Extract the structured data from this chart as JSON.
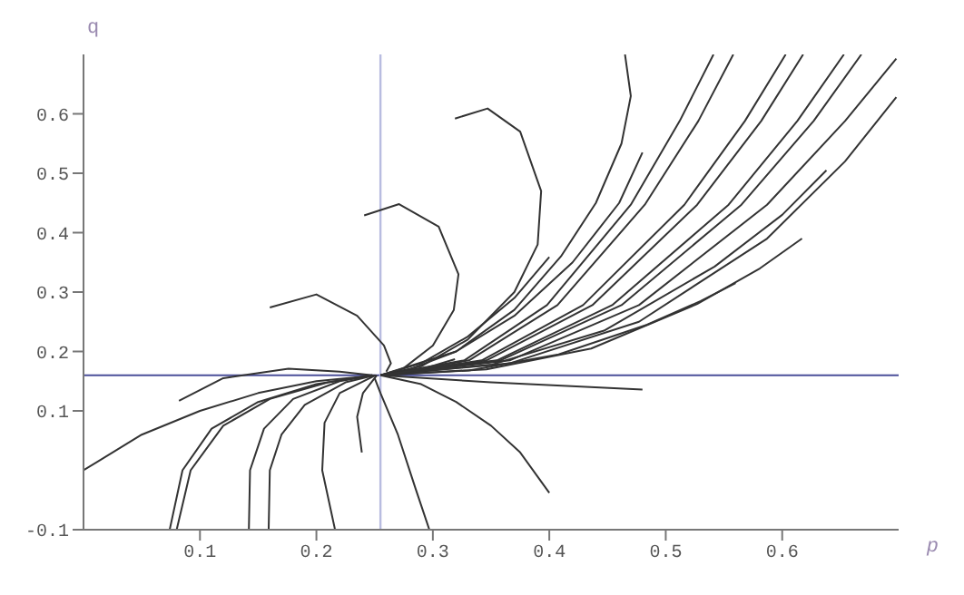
{
  "chart_data": {
    "type": "line",
    "xlabel": "p",
    "ylabel": "q",
    "xlim": [
      0,
      0.7
    ],
    "ylim": [
      -0.1,
      0.7
    ],
    "xticks": [
      0.1,
      0.2,
      0.3,
      0.4,
      0.5,
      0.6
    ],
    "yticks": [
      -0.1,
      0.1,
      0.2,
      0.3,
      0.4,
      0.5,
      0.6
    ],
    "grid": false,
    "marker": "none",
    "line_style": "solid",
    "ref_lines": [
      {
        "axis": "y",
        "value": 0.16,
        "color": "#4b4f9a"
      },
      {
        "axis": "x",
        "value": 0.255,
        "color": "#b8bce0"
      }
    ],
    "series": [
      {
        "color": "#333333",
        "x": [
          0,
          0.05,
          0.1,
          0.15,
          0.2,
          0.248
        ],
        "values": [
          0,
          0.06,
          0.1,
          0.13,
          0.15,
          0.159
        ]
      },
      {
        "color": "#333333",
        "x": [
          0.082,
          0.12,
          0.176,
          0.22,
          0.248
        ],
        "values": [
          0.117,
          0.155,
          0.171,
          0.166,
          0.16
        ]
      },
      {
        "color": "#333333",
        "x": [
          0.16,
          0.2,
          0.235,
          0.258,
          0.264,
          0.26
        ],
        "values": [
          0.274,
          0.296,
          0.26,
          0.21,
          0.18,
          0.166
        ]
      },
      {
        "color": "#333333",
        "x": [
          0.241,
          0.271,
          0.305,
          0.322,
          0.318,
          0.3,
          0.275,
          0.265
        ],
        "values": [
          0.429,
          0.448,
          0.41,
          0.33,
          0.27,
          0.21,
          0.172,
          0.165
        ]
      },
      {
        "color": "#333333",
        "x": [
          0.319,
          0.347,
          0.375,
          0.393,
          0.39,
          0.37,
          0.33,
          0.29,
          0.255
        ],
        "values": [
          0.592,
          0.609,
          0.57,
          0.47,
          0.38,
          0.3,
          0.22,
          0.175,
          0.16
        ]
      },
      {
        "color": "#333333",
        "x": [
          0.465,
          0.47,
          0.462,
          0.44,
          0.41,
          0.37,
          0.32,
          0.28,
          0.255
        ],
        "values": [
          0.7,
          0.63,
          0.55,
          0.45,
          0.36,
          0.27,
          0.2,
          0.17,
          0.16
        ]
      },
      {
        "color": "#333333",
        "x": [
          0.48,
          0.46,
          0.42,
          0.37,
          0.32,
          0.255
        ],
        "values": [
          0.535,
          0.45,
          0.35,
          0.26,
          0.2,
          0.16
        ]
      },
      {
        "color": "#333333",
        "x": [
          0.4,
          0.37,
          0.33,
          0.29,
          0.255
        ],
        "values": [
          0.359,
          0.29,
          0.225,
          0.18,
          0.16
        ]
      },
      {
        "color": "#333333",
        "x": [
          0.255,
          0.327,
          0.398,
          0.47,
          0.512,
          0.541
        ],
        "values": [
          0.16,
          0.185,
          0.278,
          0.447,
          0.588,
          0.7
        ]
      },
      {
        "color": "#333333",
        "x": [
          0.255,
          0.331,
          0.407,
          0.482,
          0.528,
          0.558
        ],
        "values": [
          0.16,
          0.185,
          0.278,
          0.447,
          0.588,
          0.7
        ]
      },
      {
        "color": "#333333",
        "x": [
          0.255,
          0.342,
          0.429,
          0.516,
          0.568,
          0.603
        ],
        "values": [
          0.16,
          0.185,
          0.278,
          0.447,
          0.588,
          0.7
        ]
      },
      {
        "color": "#333333",
        "x": [
          0.255,
          0.346,
          0.437,
          0.527,
          0.582,
          0.618
        ],
        "values": [
          0.16,
          0.185,
          0.278,
          0.447,
          0.588,
          0.7
        ]
      },
      {
        "color": "#333333",
        "x": [
          0.255,
          0.355,
          0.454,
          0.554,
          0.613,
          0.653
        ],
        "values": [
          0.16,
          0.185,
          0.278,
          0.447,
          0.588,
          0.7
        ]
      },
      {
        "color": "#333333",
        "x": [
          0.255,
          0.358,
          0.462,
          0.565,
          0.627,
          0.668
        ],
        "values": [
          0.16,
          0.185,
          0.278,
          0.447,
          0.588,
          0.7
        ]
      },
      {
        "color": "#333333",
        "x": [
          0.255,
          0.366,
          0.477,
          0.587,
          0.654,
          0.698
        ],
        "values": [
          0.16,
          0.185,
          0.278,
          0.447,
          0.588,
          0.693
        ]
      },
      {
        "color": "#333333",
        "x": [
          0.255,
          0.366,
          0.477,
          0.587,
          0.654,
          0.698
        ],
        "values": [
          0.16,
          0.18,
          0.25,
          0.39,
          0.52,
          0.628
        ]
      },
      {
        "color": "#333333",
        "x": [
          0.255,
          0.351,
          0.447,
          0.542,
          0.6,
          0.638
        ],
        "values": [
          0.16,
          0.178,
          0.235,
          0.343,
          0.43,
          0.505
        ]
      },
      {
        "color": "#333333",
        "x": [
          0.255,
          0.346,
          0.436,
          0.527,
          0.581,
          0.617
        ],
        "values": [
          0.16,
          0.17,
          0.205,
          0.28,
          0.34,
          0.39
        ]
      },
      {
        "color": "#333333",
        "x": [
          0.255,
          0.331,
          0.408,
          0.484,
          0.53,
          0.56
        ],
        "values": [
          0.16,
          0.168,
          0.195,
          0.245,
          0.285,
          0.315
        ]
      },
      {
        "color": "#333333",
        "x": [
          0.255,
          0.29,
          0.319
        ],
        "values": [
          0.16,
          0.17,
          0.187
        ]
      },
      {
        "color": "#333333",
        "x": [
          0.255,
          0.35,
          0.48
        ],
        "values": [
          0.16,
          0.148,
          0.136
        ]
      },
      {
        "color": "#333333",
        "x": [
          0.255,
          0.29,
          0.32,
          0.35,
          0.375,
          0.4
        ],
        "values": [
          0.16,
          0.145,
          0.115,
          0.075,
          0.03,
          -0.038
        ]
      },
      {
        "color": "#333333",
        "x": [
          0.25,
          0.255,
          0.27,
          0.285,
          0.297
        ],
        "values": [
          0.155,
          0.13,
          0.06,
          -0.03,
          -0.1
        ]
      },
      {
        "color": "#333333",
        "x": [
          0.074,
          0.085,
          0.11,
          0.15,
          0.2,
          0.248
        ],
        "values": [
          -0.1,
          0,
          0.07,
          0.115,
          0.145,
          0.16
        ]
      },
      {
        "color": "#333333",
        "x": [
          0.08,
          0.092,
          0.12,
          0.16,
          0.21,
          0.248
        ],
        "values": [
          -0.1,
          0,
          0.075,
          0.12,
          0.148,
          0.16
        ]
      },
      {
        "color": "#333333",
        "x": [
          0.142,
          0.143,
          0.155,
          0.18,
          0.22,
          0.249
        ],
        "values": [
          -0.1,
          0,
          0.07,
          0.12,
          0.15,
          0.16
        ]
      },
      {
        "color": "#333333",
        "x": [
          0.159,
          0.16,
          0.17,
          0.19,
          0.225,
          0.25
        ],
        "values": [
          -0.1,
          0,
          0.06,
          0.11,
          0.148,
          0.16
        ]
      },
      {
        "color": "#333333",
        "x": [
          0.216,
          0.205,
          0.207,
          0.22,
          0.251
        ],
        "values": [
          -0.1,
          0,
          0.08,
          0.13,
          0.16
        ]
      },
      {
        "color": "#333333",
        "x": [
          0.239,
          0.235,
          0.24,
          0.252
        ],
        "values": [
          0.03,
          0.09,
          0.13,
          0.16
        ]
      }
    ]
  }
}
